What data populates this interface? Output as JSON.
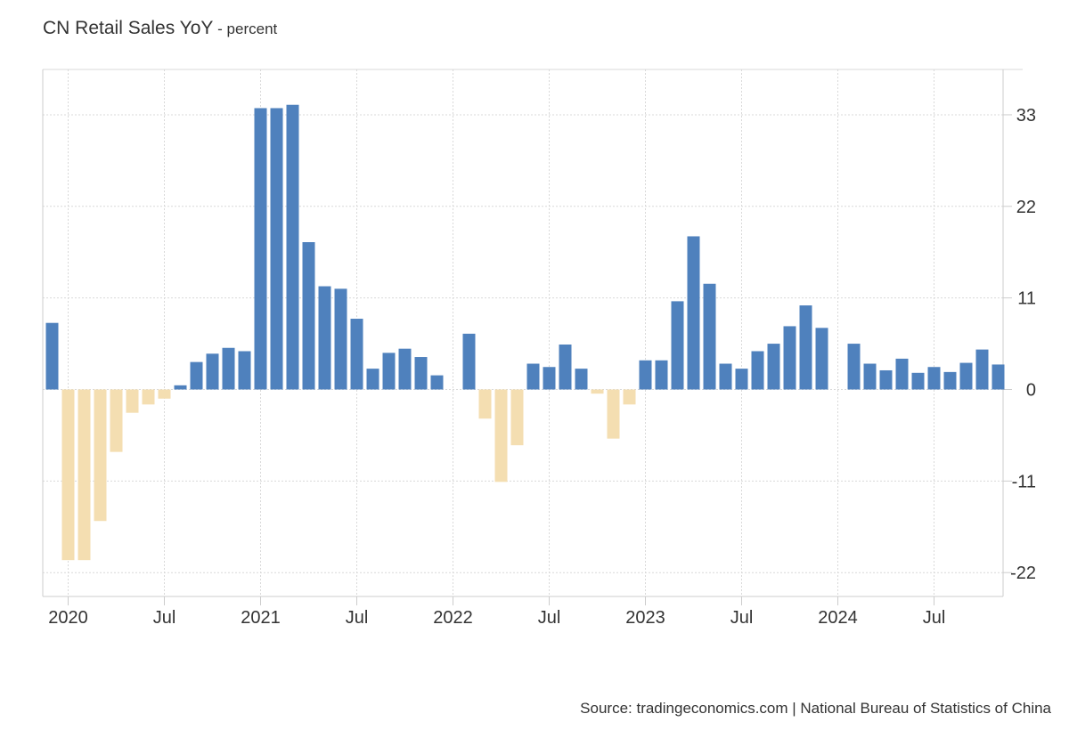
{
  "header": {
    "title": "CN Retail Sales YoY",
    "unit": " - percent"
  },
  "footer": {
    "source": "Source: tradingeconomics.com | National Bureau of Statistics of China"
  },
  "colors": {
    "positive": "#4f81bd",
    "negative": "#f4deb1",
    "grid": "#d9d9d9",
    "axis": "#cccccc"
  },
  "chart_data": {
    "type": "bar",
    "title": "CN Retail Sales YoY",
    "ylabel": "percent",
    "ylim": [
      -23.5,
      38.5
    ],
    "yticks": [
      33,
      22,
      11,
      0,
      -11,
      -22
    ],
    "grid": true,
    "xticks": [
      {
        "label": "2020",
        "date": "2020-01"
      },
      {
        "label": "Jul",
        "date": "2020-07"
      },
      {
        "label": "2021",
        "date": "2021-01"
      },
      {
        "label": "Jul",
        "date": "2021-07"
      },
      {
        "label": "2022",
        "date": "2022-01"
      },
      {
        "label": "Jul",
        "date": "2022-07"
      },
      {
        "label": "2023",
        "date": "2023-01"
      },
      {
        "label": "Jul",
        "date": "2023-07"
      },
      {
        "label": "2024",
        "date": "2024-01"
      },
      {
        "label": "Jul",
        "date": "2024-07"
      }
    ],
    "dates": [
      "2019-12",
      "2020-01",
      "2020-02",
      "2020-03",
      "2020-04",
      "2020-05",
      "2020-06",
      "2020-07",
      "2020-08",
      "2020-09",
      "2020-10",
      "2020-11",
      "2020-12",
      "2021-01",
      "2021-02",
      "2021-03",
      "2021-04",
      "2021-05",
      "2021-06",
      "2021-07",
      "2021-08",
      "2021-09",
      "2021-10",
      "2021-11",
      "2021-12",
      "2022-01",
      "2022-02",
      "2022-03",
      "2022-04",
      "2022-05",
      "2022-06",
      "2022-07",
      "2022-08",
      "2022-09",
      "2022-10",
      "2022-11",
      "2022-12",
      "2023-01",
      "2023-02",
      "2023-03",
      "2023-04",
      "2023-05",
      "2023-06",
      "2023-07",
      "2023-08",
      "2023-09",
      "2023-10",
      "2023-11",
      "2023-12",
      "2024-01",
      "2024-02",
      "2024-03",
      "2024-04",
      "2024-05",
      "2024-06",
      "2024-07",
      "2024-08",
      "2024-09",
      "2024-10",
      "2024-11"
    ],
    "values": [
      8,
      -20.5,
      -20.5,
      -15.8,
      -7.5,
      -2.8,
      -1.8,
      -1.1,
      0.5,
      3.3,
      4.3,
      5,
      4.6,
      33.8,
      33.8,
      34.2,
      17.7,
      12.4,
      12.1,
      8.5,
      2.5,
      4.4,
      4.9,
      3.9,
      1.7,
      0,
      6.7,
      -3.5,
      -11.1,
      -6.7,
      3.1,
      2.7,
      5.4,
      2.5,
      -0.5,
      -5.9,
      -1.8,
      3.5,
      3.5,
      10.6,
      18.4,
      12.7,
      3.1,
      2.5,
      4.6,
      5.5,
      7.6,
      10.1,
      7.4,
      0,
      5.5,
      3.1,
      2.3,
      3.7,
      2,
      2.7,
      2.1,
      3.2,
      4.8,
      3
    ]
  }
}
